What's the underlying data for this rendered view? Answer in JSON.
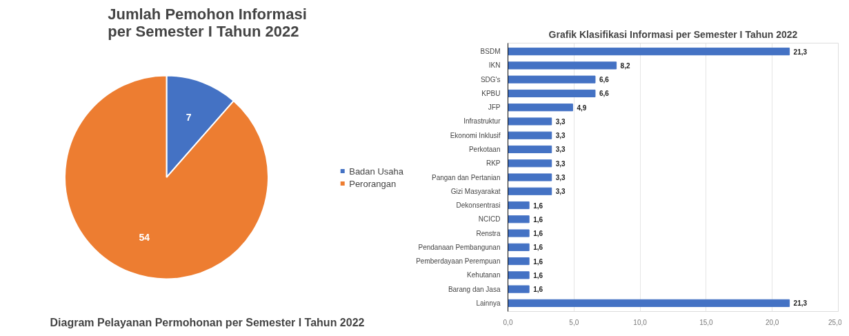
{
  "chart_data": [
    {
      "type": "pie",
      "title": "Jumlah Pemohon Informasi per Semester I Tahun 2022",
      "categories": [
        "Badan Usaha",
        "Perorangan"
      ],
      "values": [
        7,
        54
      ],
      "colors": [
        "#4472c4",
        "#ed7d31"
      ],
      "data_labels": true,
      "legend": "right",
      "annotations": [
        "Diagram Pelayanan Permohonan per Semester I Tahun 2022"
      ]
    },
    {
      "type": "bar",
      "orientation": "horizontal",
      "title": "Grafik Klasifikasi Informasi per Semester I Tahun 2022",
      "categories": [
        "BSDM",
        "IKN",
        "SDG's",
        "KPBU",
        "JFP",
        "Infrastruktur",
        "Ekonomi Inklusif",
        "Perkotaan",
        "RKP",
        "Pangan dan Pertanian",
        "Gizi Masyarakat",
        "Dekonsentrasi",
        "NCICD",
        "Renstra",
        "Pendanaan Pembangunan",
        "Pemberdayaan Perempuan",
        "Kehutanan",
        "Barang dan Jasa",
        "Lainnya"
      ],
      "values": [
        21.3,
        8.2,
        6.6,
        6.6,
        4.9,
        3.3,
        3.3,
        3.3,
        3.3,
        3.3,
        3.3,
        1.6,
        1.6,
        1.6,
        1.6,
        1.6,
        1.6,
        1.6,
        21.3
      ],
      "value_labels": [
        "21,3",
        "8,2",
        "6,6",
        "6,6",
        "4,9",
        "3,3",
        "3,3",
        "3,3",
        "3,3",
        "3,3",
        "3,3",
        "1,6",
        "1,6",
        "1,6",
        "1,6",
        "1,6",
        "1,6",
        "1,6",
        "21,3"
      ],
      "color": "#4472c4",
      "xlim": [
        0,
        25
      ],
      "xticks": [
        {
          "value": 0,
          "label": "0,0"
        },
        {
          "value": 5,
          "label": "5,0"
        },
        {
          "value": 10,
          "label": "10,0"
        },
        {
          "value": 15,
          "label": "15,0"
        },
        {
          "value": 20,
          "label": "20,0"
        },
        {
          "value": 25,
          "label": "25,0"
        }
      ],
      "grid": "x"
    }
  ]
}
